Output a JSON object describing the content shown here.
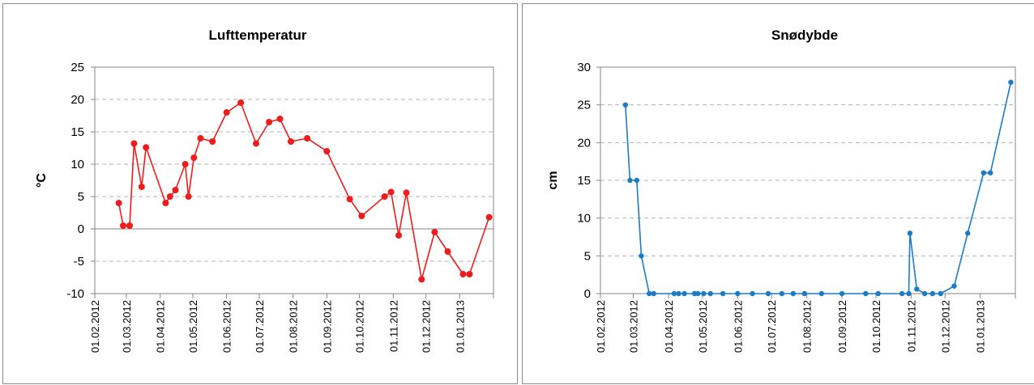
{
  "chart_data": [
    {
      "type": "line",
      "title": "Lufttemperatur",
      "xlabel": "",
      "ylabel": "°C",
      "color": "#ee1c1c",
      "ylim": [
        -10,
        25
      ],
      "y_ticks": [
        "25",
        "20",
        "15",
        "10",
        "5",
        "0",
        "-5",
        "-10"
      ],
      "xlim": [
        "2012-02-01",
        "2013-02-01"
      ],
      "x_tick_labels": [
        "01.02.2012",
        "01.03.2012",
        "01.04.2012",
        "01.05.2012",
        "01.06.2012",
        "01.07.2012",
        "01.08.2012",
        "01.09.2012",
        "01.10.2012",
        "01.11.2012",
        "01.12.2012",
        "01.01.2013"
      ],
      "grid": "horizontal dashed",
      "series": [
        {
          "x": [
            "2012-02-23",
            "2012-02-27",
            "2012-03-04",
            "2012-03-08",
            "2012-03-15",
            "2012-03-19",
            "2012-04-06",
            "2012-04-10",
            "2012-04-15",
            "2012-04-24",
            "2012-04-27",
            "2012-05-02",
            "2012-05-08",
            "2012-05-19",
            "2012-06-01",
            "2012-06-14",
            "2012-06-28",
            "2012-07-10",
            "2012-07-20",
            "2012-07-30",
            "2012-08-14",
            "2012-09-01",
            "2012-09-22",
            "2012-10-03",
            "2012-10-24",
            "2012-10-30",
            "2012-11-06",
            "2012-11-13",
            "2012-11-27",
            "2012-12-09",
            "2012-12-21",
            "2013-01-04",
            "2013-01-10",
            "2013-01-28"
          ],
          "y": [
            4.0,
            0.5,
            0.5,
            13.2,
            6.5,
            12.6,
            4.0,
            5.0,
            6.0,
            10.0,
            5.0,
            11.0,
            14.0,
            13.5,
            18.0,
            19.5,
            13.2,
            16.5,
            17.0,
            13.5,
            14.0,
            12.0,
            4.6,
            2.0,
            5.0,
            5.7,
            -1.0,
            5.6,
            -7.8,
            -0.5,
            -3.5,
            -7.0,
            -7.0,
            1.8
          ]
        }
      ]
    },
    {
      "type": "line",
      "title": "Snødybde",
      "xlabel": "",
      "ylabel": "cm",
      "color": "#1a7cc4",
      "ylim": [
        0,
        30
      ],
      "y_ticks": [
        "30",
        "25",
        "20",
        "15",
        "10",
        "5",
        "0"
      ],
      "xlim": [
        "2012-02-01",
        "2013-02-01"
      ],
      "x_tick_labels": [
        "01.02.2012",
        "01.03.2012",
        "01.04.2012",
        "01.05.2012",
        "01.06.2012",
        "01.07.2012",
        "01.08.2012",
        "01.09.2012",
        "01.10.2012",
        "01.11.2012",
        "01.12.2012",
        "01.01.2013"
      ],
      "grid": "horizontal dashed",
      "series": [
        {
          "x": [
            "2012-02-23",
            "2012-02-27",
            "2012-03-04",
            "2012-03-08",
            "2012-03-15",
            "2012-03-19",
            "2012-04-06",
            "2012-04-10",
            "2012-04-15",
            "2012-04-24",
            "2012-04-27",
            "2012-05-02",
            "2012-05-08",
            "2012-05-19",
            "2012-06-01",
            "2012-06-14",
            "2012-06-28",
            "2012-07-10",
            "2012-07-20",
            "2012-07-30",
            "2012-08-14",
            "2012-09-01",
            "2012-09-22",
            "2012-10-03",
            "2012-10-24",
            "2012-10-30",
            "2012-10-31",
            "2012-11-06",
            "2012-11-13",
            "2012-11-20",
            "2012-11-27",
            "2012-12-09",
            "2012-12-21",
            "2013-01-04",
            "2013-01-10",
            "2013-01-28"
          ],
          "y": [
            25,
            15,
            15,
            5,
            0,
            0,
            0,
            0,
            0,
            0,
            0,
            0,
            0,
            0,
            0,
            0,
            0,
            0,
            0,
            0,
            0,
            0,
            0,
            0,
            0,
            0,
            8,
            0.6,
            0,
            0,
            0,
            1,
            8,
            16,
            16,
            28
          ]
        }
      ]
    }
  ]
}
